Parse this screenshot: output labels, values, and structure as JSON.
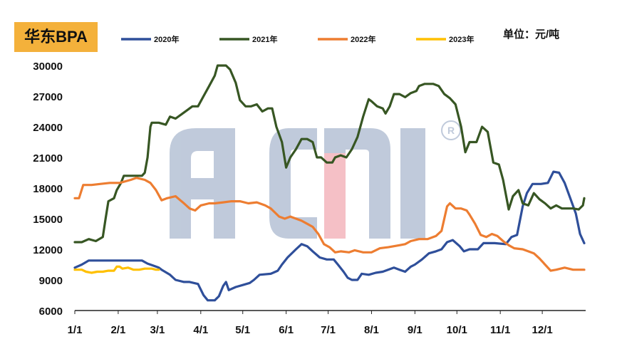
{
  "title": "华东BPA",
  "unit": "单位：元/吨",
  "chart_data": {
    "type": "line",
    "title": "华东BPA",
    "xlabel": "",
    "ylabel": "",
    "ylim": [
      6000,
      30000
    ],
    "yticks": [
      6000,
      9000,
      12000,
      15000,
      18000,
      21000,
      24000,
      27000,
      30000
    ],
    "xticks": [
      {
        "label": "1/1",
        "day": 0
      },
      {
        "label": "2/1",
        "day": 31
      },
      {
        "label": "3/1",
        "day": 59
      },
      {
        "label": "4/1",
        "day": 90
      },
      {
        "label": "5/1",
        "day": 120
      },
      {
        "label": "6/1",
        "day": 151
      },
      {
        "label": "7/1",
        "day": 181
      },
      {
        "label": "8/1",
        "day": 212
      },
      {
        "label": "9/1",
        "day": 243
      },
      {
        "label": "10/1",
        "day": 273
      },
      {
        "label": "11/1",
        "day": 304
      },
      {
        "label": "12/1",
        "day": 334
      }
    ],
    "xlim": [
      0,
      365
    ],
    "legend_position": "top",
    "watermark": "ACMI",
    "series": [
      {
        "name": "2020年",
        "color": "#2F4F9A",
        "points": [
          [
            0,
            10200
          ],
          [
            5,
            10500
          ],
          [
            10,
            10900
          ],
          [
            20,
            10900
          ],
          [
            40,
            10900
          ],
          [
            48,
            10900
          ],
          [
            52,
            10600
          ],
          [
            56,
            10400
          ],
          [
            60,
            10200
          ],
          [
            62,
            10000
          ],
          [
            68,
            9500
          ],
          [
            72,
            9000
          ],
          [
            78,
            8800
          ],
          [
            82,
            8800
          ],
          [
            88,
            8600
          ],
          [
            92,
            7500
          ],
          [
            95,
            7000
          ],
          [
            100,
            7000
          ],
          [
            103,
            7400
          ],
          [
            106,
            8400
          ],
          [
            108,
            8800
          ],
          [
            110,
            8000
          ],
          [
            115,
            8300
          ],
          [
            120,
            8500
          ],
          [
            125,
            8700
          ],
          [
            128,
            9000
          ],
          [
            132,
            9500
          ],
          [
            140,
            9600
          ],
          [
            145,
            9900
          ],
          [
            148,
            10500
          ],
          [
            152,
            11200
          ],
          [
            158,
            12000
          ],
          [
            162,
            12500
          ],
          [
            166,
            12300
          ],
          [
            170,
            11800
          ],
          [
            175,
            11200
          ],
          [
            180,
            11000
          ],
          [
            185,
            11000
          ],
          [
            188,
            10500
          ],
          [
            192,
            9800
          ],
          [
            195,
            9200
          ],
          [
            198,
            9000
          ],
          [
            202,
            9000
          ],
          [
            205,
            9600
          ],
          [
            210,
            9500
          ],
          [
            215,
            9700
          ],
          [
            220,
            9800
          ],
          [
            228,
            10200
          ],
          [
            232,
            10000
          ],
          [
            236,
            9800
          ],
          [
            240,
            10300
          ],
          [
            243,
            10500
          ],
          [
            248,
            11000
          ],
          [
            253,
            11600
          ],
          [
            258,
            11800
          ],
          [
            262,
            12000
          ],
          [
            266,
            12700
          ],
          [
            270,
            12900
          ],
          [
            275,
            12300
          ],
          [
            278,
            11800
          ],
          [
            282,
            12000
          ],
          [
            288,
            12000
          ],
          [
            292,
            12600
          ],
          [
            300,
            12600
          ],
          [
            308,
            12500
          ],
          [
            312,
            13200
          ],
          [
            316,
            13400
          ],
          [
            320,
            16200
          ],
          [
            323,
            17500
          ],
          [
            327,
            18400
          ],
          [
            333,
            18400
          ],
          [
            338,
            18500
          ],
          [
            342,
            19600
          ],
          [
            346,
            19500
          ],
          [
            350,
            18500
          ],
          [
            354,
            17000
          ],
          [
            358,
            15500
          ],
          [
            361,
            13500
          ],
          [
            364,
            12600
          ]
        ]
      },
      {
        "name": "2021年",
        "color": "#375623",
        "points": [
          [
            0,
            12700
          ],
          [
            5,
            12700
          ],
          [
            10,
            13000
          ],
          [
            15,
            12800
          ],
          [
            20,
            13200
          ],
          [
            22,
            15000
          ],
          [
            24,
            16700
          ],
          [
            28,
            17000
          ],
          [
            30,
            17800
          ],
          [
            33,
            18500
          ],
          [
            35,
            19200
          ],
          [
            40,
            19200
          ],
          [
            48,
            19200
          ],
          [
            50,
            19500
          ],
          [
            52,
            21000
          ],
          [
            54,
            24000
          ],
          [
            55,
            24400
          ],
          [
            60,
            24400
          ],
          [
            65,
            24200
          ],
          [
            68,
            25000
          ],
          [
            72,
            24800
          ],
          [
            76,
            25200
          ],
          [
            80,
            25600
          ],
          [
            84,
            26000
          ],
          [
            88,
            26000
          ],
          [
            92,
            27000
          ],
          [
            96,
            28000
          ],
          [
            100,
            29000
          ],
          [
            102,
            30000
          ],
          [
            108,
            30000
          ],
          [
            111,
            29600
          ],
          [
            115,
            28300
          ],
          [
            118,
            26600
          ],
          [
            122,
            26000
          ],
          [
            126,
            26000
          ],
          [
            130,
            26200
          ],
          [
            134,
            25500
          ],
          [
            138,
            25800
          ],
          [
            141,
            25800
          ],
          [
            144,
            24000
          ],
          [
            148,
            22500
          ],
          [
            151,
            20000
          ],
          [
            154,
            21000
          ],
          [
            158,
            21800
          ],
          [
            162,
            22800
          ],
          [
            166,
            22800
          ],
          [
            170,
            22500
          ],
          [
            173,
            21000
          ],
          [
            176,
            21000
          ],
          [
            180,
            20500
          ],
          [
            184,
            20500
          ],
          [
            186,
            21000
          ],
          [
            190,
            21200
          ],
          [
            194,
            21000
          ],
          [
            198,
            21800
          ],
          [
            202,
            23000
          ],
          [
            206,
            25000
          ],
          [
            210,
            26700
          ],
          [
            212,
            26500
          ],
          [
            216,
            26000
          ],
          [
            220,
            25800
          ],
          [
            222,
            25300
          ],
          [
            225,
            26000
          ],
          [
            228,
            27200
          ],
          [
            232,
            27200
          ],
          [
            236,
            26900
          ],
          [
            240,
            27300
          ],
          [
            244,
            27500
          ],
          [
            246,
            28000
          ],
          [
            250,
            28200
          ],
          [
            256,
            28200
          ],
          [
            260,
            28000
          ],
          [
            264,
            27200
          ],
          [
            268,
            26800
          ],
          [
            272,
            26200
          ],
          [
            276,
            24000
          ],
          [
            279,
            21500
          ],
          [
            282,
            22500
          ],
          [
            287,
            22500
          ],
          [
            291,
            24000
          ],
          [
            295,
            23500
          ],
          [
            299,
            20500
          ],
          [
            303,
            20300
          ],
          [
            306,
            18800
          ],
          [
            310,
            15900
          ],
          [
            313,
            17200
          ],
          [
            317,
            17800
          ],
          [
            320,
            16500
          ],
          [
            324,
            16300
          ],
          [
            328,
            17500
          ],
          [
            332,
            16900
          ],
          [
            336,
            16500
          ],
          [
            340,
            16000
          ],
          [
            344,
            16300
          ],
          [
            348,
            16000
          ],
          [
            352,
            16000
          ],
          [
            356,
            16000
          ],
          [
            360,
            15900
          ],
          [
            363,
            16300
          ],
          [
            364,
            17000
          ]
        ]
      },
      {
        "name": "2022年",
        "color": "#ED7D31",
        "points": [
          [
            0,
            17000
          ],
          [
            3,
            17000
          ],
          [
            6,
            18300
          ],
          [
            12,
            18300
          ],
          [
            18,
            18400
          ],
          [
            25,
            18500
          ],
          [
            32,
            18500
          ],
          [
            40,
            18800
          ],
          [
            44,
            19000
          ],
          [
            50,
            18800
          ],
          [
            54,
            18500
          ],
          [
            58,
            17800
          ],
          [
            62,
            16800
          ],
          [
            66,
            17000
          ],
          [
            72,
            17200
          ],
          [
            78,
            16500
          ],
          [
            82,
            16000
          ],
          [
            86,
            15800
          ],
          [
            90,
            16300
          ],
          [
            96,
            16500
          ],
          [
            100,
            16500
          ],
          [
            106,
            16600
          ],
          [
            112,
            16700
          ],
          [
            118,
            16700
          ],
          [
            124,
            16500
          ],
          [
            130,
            16600
          ],
          [
            136,
            16300
          ],
          [
            140,
            16000
          ],
          [
            146,
            15200
          ],
          [
            150,
            15000
          ],
          [
            154,
            15200
          ],
          [
            158,
            15000
          ],
          [
            162,
            14800
          ],
          [
            166,
            14500
          ],
          [
            170,
            14200
          ],
          [
            174,
            13500
          ],
          [
            178,
            12500
          ],
          [
            182,
            12200
          ],
          [
            186,
            11700
          ],
          [
            190,
            11800
          ],
          [
            196,
            11700
          ],
          [
            200,
            11900
          ],
          [
            206,
            11700
          ],
          [
            212,
            11700
          ],
          [
            218,
            12100
          ],
          [
            224,
            12200
          ],
          [
            232,
            12400
          ],
          [
            236,
            12500
          ],
          [
            240,
            12800
          ],
          [
            246,
            13000
          ],
          [
            252,
            13000
          ],
          [
            258,
            13300
          ],
          [
            262,
            13800
          ],
          [
            264,
            15000
          ],
          [
            266,
            16200
          ],
          [
            268,
            16500
          ],
          [
            272,
            16000
          ],
          [
            276,
            16000
          ],
          [
            280,
            15800
          ],
          [
            282,
            15400
          ],
          [
            286,
            14500
          ],
          [
            290,
            13400
          ],
          [
            294,
            13200
          ],
          [
            298,
            13500
          ],
          [
            302,
            13300
          ],
          [
            306,
            12800
          ],
          [
            310,
            12400
          ],
          [
            314,
            12100
          ],
          [
            320,
            12000
          ],
          [
            324,
            11800
          ],
          [
            328,
            11600
          ],
          [
            332,
            11100
          ],
          [
            336,
            10500
          ],
          [
            340,
            9900
          ],
          [
            344,
            10000
          ],
          [
            350,
            10200
          ],
          [
            356,
            10000
          ],
          [
            364,
            10000
          ]
        ]
      },
      {
        "name": "2023年",
        "color": "#FFC000",
        "points": [
          [
            0,
            10000
          ],
          [
            5,
            10000
          ],
          [
            8,
            9800
          ],
          [
            12,
            9700
          ],
          [
            16,
            9800
          ],
          [
            20,
            9800
          ],
          [
            24,
            9900
          ],
          [
            28,
            9900
          ],
          [
            30,
            10300
          ],
          [
            32,
            10300
          ],
          [
            34,
            10100
          ],
          [
            38,
            10200
          ],
          [
            42,
            10000
          ],
          [
            46,
            10000
          ],
          [
            50,
            10100
          ],
          [
            55,
            10100
          ],
          [
            58,
            10000
          ],
          [
            60,
            10000
          ]
        ]
      }
    ]
  }
}
